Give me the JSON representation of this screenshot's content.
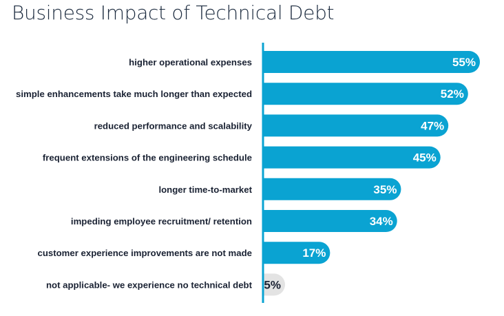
{
  "chart_data": {
    "type": "bar",
    "orientation": "horizontal",
    "title": "Business Impact of Technical Debt",
    "xlabel": "",
    "ylabel": "",
    "xlim": [
      0,
      55
    ],
    "unit": "%",
    "categories": [
      "higher operational expenses",
      "simple enhancements take much longer than expected",
      "reduced performance and scalability",
      "frequent extensions of the engineering schedule",
      "longer time-to-market",
      "impeding employee recruitment/ retention",
      "customer experience improvements are not made",
      "not applicable- we experience no technical debt"
    ],
    "values": [
      55,
      52,
      47,
      45,
      35,
      34,
      17,
      5
    ],
    "value_labels": [
      "55%",
      "52%",
      "47%",
      "45%",
      "35%",
      "34%",
      "17%",
      "5%"
    ],
    "highlight_color": "#0aa3d2",
    "muted_color": "#e3e3e3",
    "axis_color": "#0aa3d2",
    "grid": false,
    "legend": "none"
  }
}
